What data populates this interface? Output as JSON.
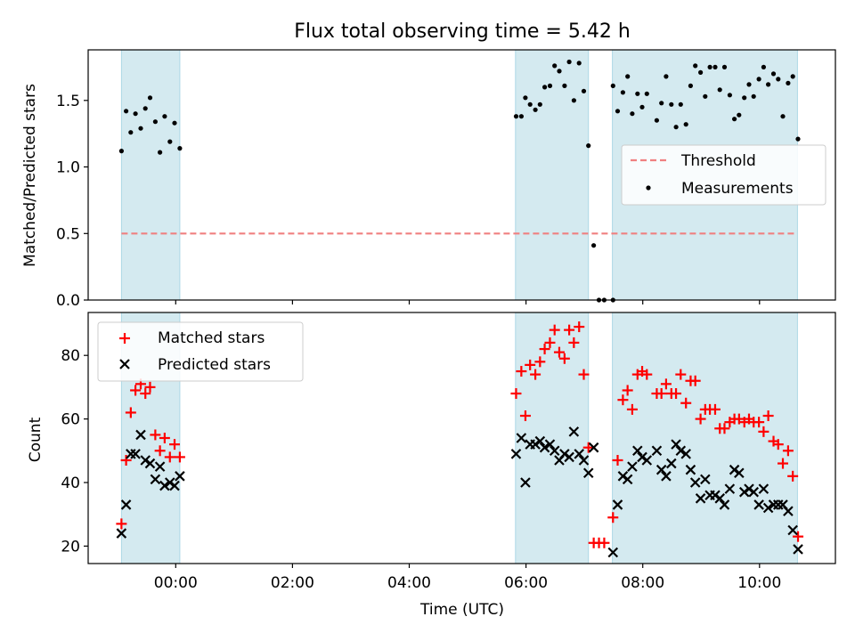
{
  "chart_data": [
    {
      "type": "scatter",
      "title": "Flux total observing time = 5.42 h",
      "ylabel": "Matched/Predicted stars",
      "xlabel": "",
      "x_range_hours": [
        -1.5,
        11.3
      ],
      "ylim": [
        0,
        1.88
      ],
      "yticks": [
        0.0,
        0.5,
        1.0,
        1.5
      ],
      "ytick_labels": [
        "0.0",
        "0.5",
        "1.0",
        "1.5"
      ],
      "xticks": [
        0,
        2,
        4,
        6,
        8,
        10
      ],
      "xtick_labels": [
        "00:00",
        "02:00",
        "04:00",
        "06:00",
        "08:00",
        "10:00"
      ],
      "show_xtick_labels": false,
      "observing_windows": [
        [
          -0.93,
          0.07
        ],
        [
          5.82,
          7.07
        ],
        [
          7.48,
          10.65
        ]
      ],
      "threshold": {
        "name": "Threshold",
        "value": 0.5,
        "x": [
          -0.93,
          10.6
        ],
        "color": "#f08080"
      },
      "legend_position": "center-right",
      "series": [
        {
          "name": "Measurements",
          "color": "#000000",
          "marker": "dot",
          "points": [
            [
              -0.93,
              1.12
            ],
            [
              -0.85,
              1.42
            ],
            [
              -0.77,
              1.26
            ],
            [
              -0.69,
              1.4
            ],
            [
              -0.6,
              1.29
            ],
            [
              -0.52,
              1.44
            ],
            [
              -0.44,
              1.52
            ],
            [
              -0.35,
              1.34
            ],
            [
              -0.27,
              1.11
            ],
            [
              -0.19,
              1.38
            ],
            [
              -0.1,
              1.19
            ],
            [
              -0.02,
              1.33
            ],
            [
              0.07,
              1.14
            ],
            [
              5.83,
              1.38
            ],
            [
              5.92,
              1.38
            ],
            [
              5.99,
              1.52
            ],
            [
              6.07,
              1.47
            ],
            [
              6.16,
              1.43
            ],
            [
              6.24,
              1.47
            ],
            [
              6.32,
              1.6
            ],
            [
              6.41,
              1.61
            ],
            [
              6.49,
              1.76
            ],
            [
              6.57,
              1.72
            ],
            [
              6.66,
              1.61
            ],
            [
              6.74,
              1.79
            ],
            [
              6.82,
              1.5
            ],
            [
              6.91,
              1.78
            ],
            [
              6.99,
              1.57
            ],
            [
              7.07,
              1.16
            ],
            [
              7.16,
              0.41
            ],
            [
              7.25,
              0.0
            ],
            [
              7.34,
              0.0
            ],
            [
              7.49,
              0.0
            ],
            [
              7.49,
              1.61
            ],
            [
              7.57,
              1.42
            ],
            [
              7.66,
              1.56
            ],
            [
              7.74,
              1.68
            ],
            [
              7.82,
              1.4
            ],
            [
              7.91,
              1.55
            ],
            [
              7.99,
              1.45
            ],
            [
              8.07,
              1.55
            ],
            [
              8.24,
              1.35
            ],
            [
              8.32,
              1.48
            ],
            [
              8.4,
              1.68
            ],
            [
              8.49,
              1.47
            ],
            [
              8.57,
              1.3
            ],
            [
              8.65,
              1.47
            ],
            [
              8.74,
              1.32
            ],
            [
              8.82,
              1.61
            ],
            [
              8.9,
              1.76
            ],
            [
              8.99,
              1.71
            ],
            [
              9.07,
              1.53
            ],
            [
              9.15,
              1.75
            ],
            [
              9.24,
              1.75
            ],
            [
              9.32,
              1.58
            ],
            [
              9.4,
              1.75
            ],
            [
              9.49,
              1.54
            ],
            [
              9.57,
              1.36
            ],
            [
              9.65,
              1.39
            ],
            [
              9.74,
              1.52
            ],
            [
              9.82,
              1.62
            ],
            [
              9.9,
              1.53
            ],
            [
              9.99,
              1.66
            ],
            [
              10.07,
              1.75
            ],
            [
              10.15,
              1.62
            ],
            [
              10.24,
              1.7
            ],
            [
              10.32,
              1.66
            ],
            [
              10.4,
              1.38
            ],
            [
              10.49,
              1.63
            ],
            [
              10.57,
              1.68
            ],
            [
              10.66,
              1.21
            ]
          ]
        }
      ]
    },
    {
      "type": "scatter",
      "title": "",
      "ylabel": "Count",
      "xlabel": "Time (UTC)",
      "x_range_hours": [
        -1.5,
        11.3
      ],
      "ylim": [
        14.5,
        93.5
      ],
      "yticks": [
        20,
        40,
        60,
        80
      ],
      "ytick_labels": [
        "20",
        "40",
        "60",
        "80"
      ],
      "xticks": [
        0,
        2,
        4,
        6,
        8,
        10
      ],
      "xtick_labels": [
        "00:00",
        "02:00",
        "04:00",
        "06:00",
        "08:00",
        "10:00"
      ],
      "show_xtick_labels": true,
      "observing_windows": [
        [
          -0.93,
          0.07
        ],
        [
          5.82,
          7.07
        ],
        [
          7.48,
          10.65
        ]
      ],
      "legend_position": "upper-left",
      "series": [
        {
          "name": "Matched stars",
          "color": "#ff0000",
          "marker": "plus",
          "points": [
            [
              -0.93,
              27
            ],
            [
              -0.85,
              47
            ],
            [
              -0.77,
              62
            ],
            [
              -0.69,
              69
            ],
            [
              -0.6,
              71
            ],
            [
              -0.52,
              68
            ],
            [
              -0.44,
              70
            ],
            [
              -0.35,
              55
            ],
            [
              -0.27,
              50
            ],
            [
              -0.19,
              54
            ],
            [
              -0.1,
              48
            ],
            [
              -0.02,
              52
            ],
            [
              0.07,
              48
            ],
            [
              5.83,
              68
            ],
            [
              5.92,
              75
            ],
            [
              5.99,
              61
            ],
            [
              6.07,
              77
            ],
            [
              6.16,
              74
            ],
            [
              6.24,
              78
            ],
            [
              6.32,
              82
            ],
            [
              6.41,
              84
            ],
            [
              6.49,
              88
            ],
            [
              6.57,
              81
            ],
            [
              6.66,
              79
            ],
            [
              6.74,
              88
            ],
            [
              6.82,
              84
            ],
            [
              6.91,
              89
            ],
            [
              6.99,
              74
            ],
            [
              7.07,
              51
            ],
            [
              7.16,
              21
            ],
            [
              7.25,
              21
            ],
            [
              7.34,
              21
            ],
            [
              7.49,
              29
            ],
            [
              7.57,
              47
            ],
            [
              7.66,
              66
            ],
            [
              7.74,
              69
            ],
            [
              7.82,
              63
            ],
            [
              7.91,
              74
            ],
            [
              7.99,
              75
            ],
            [
              8.07,
              74
            ],
            [
              8.24,
              68
            ],
            [
              8.32,
              68
            ],
            [
              8.4,
              71
            ],
            [
              8.49,
              68
            ],
            [
              8.57,
              68
            ],
            [
              8.65,
              74
            ],
            [
              8.74,
              65
            ],
            [
              8.82,
              72
            ],
            [
              8.9,
              72
            ],
            [
              8.99,
              60
            ],
            [
              9.07,
              63
            ],
            [
              9.15,
              63
            ],
            [
              9.24,
              63
            ],
            [
              9.32,
              57
            ],
            [
              9.4,
              57
            ],
            [
              9.49,
              59
            ],
            [
              9.57,
              60
            ],
            [
              9.65,
              60
            ],
            [
              9.74,
              59
            ],
            [
              9.82,
              60
            ],
            [
              9.9,
              59
            ],
            [
              9.99,
              59
            ],
            [
              10.07,
              56
            ],
            [
              10.15,
              61
            ],
            [
              10.24,
              53
            ],
            [
              10.32,
              52
            ],
            [
              10.4,
              46
            ],
            [
              10.49,
              50
            ],
            [
              10.57,
              42
            ],
            [
              10.66,
              23
            ]
          ]
        },
        {
          "name": "Predicted stars",
          "color": "#000000",
          "marker": "cross",
          "points": [
            [
              -0.93,
              24
            ],
            [
              -0.85,
              33
            ],
            [
              -0.77,
              49
            ],
            [
              -0.69,
              49
            ],
            [
              -0.6,
              55
            ],
            [
              -0.52,
              47
            ],
            [
              -0.44,
              46
            ],
            [
              -0.35,
              41
            ],
            [
              -0.27,
              45
            ],
            [
              -0.19,
              39
            ],
            [
              -0.1,
              40
            ],
            [
              -0.02,
              39
            ],
            [
              0.07,
              42
            ],
            [
              5.83,
              49
            ],
            [
              5.92,
              54
            ],
            [
              5.99,
              40
            ],
            [
              6.07,
              52
            ],
            [
              6.16,
              52
            ],
            [
              6.24,
              53
            ],
            [
              6.32,
              51
            ],
            [
              6.41,
              52
            ],
            [
              6.49,
              50
            ],
            [
              6.57,
              47
            ],
            [
              6.66,
              49
            ],
            [
              6.74,
              48
            ],
            [
              6.82,
              56
            ],
            [
              6.91,
              49
            ],
            [
              6.99,
              47
            ],
            [
              7.07,
              43
            ],
            [
              7.16,
              51
            ],
            [
              7.49,
              18
            ],
            [
              7.57,
              33
            ],
            [
              7.66,
              42
            ],
            [
              7.74,
              41
            ],
            [
              7.82,
              45
            ],
            [
              7.91,
              50
            ],
            [
              7.99,
              48
            ],
            [
              8.07,
              47
            ],
            [
              8.24,
              50
            ],
            [
              8.32,
              44
            ],
            [
              8.4,
              42
            ],
            [
              8.49,
              46
            ],
            [
              8.57,
              52
            ],
            [
              8.65,
              50
            ],
            [
              8.74,
              49
            ],
            [
              8.82,
              44
            ],
            [
              8.9,
              40
            ],
            [
              8.99,
              35
            ],
            [
              9.07,
              41
            ],
            [
              9.15,
              36
            ],
            [
              9.24,
              36
            ],
            [
              9.32,
              35
            ],
            [
              9.4,
              33
            ],
            [
              9.49,
              38
            ],
            [
              9.57,
              44
            ],
            [
              9.65,
              43
            ],
            [
              9.74,
              37
            ],
            [
              9.82,
              38
            ],
            [
              9.9,
              37
            ],
            [
              9.99,
              33
            ],
            [
              10.07,
              38
            ],
            [
              10.15,
              32
            ],
            [
              10.24,
              33
            ],
            [
              10.32,
              33
            ],
            [
              10.4,
              33
            ],
            [
              10.49,
              31
            ],
            [
              10.57,
              25
            ],
            [
              10.66,
              19
            ]
          ]
        }
      ]
    }
  ]
}
